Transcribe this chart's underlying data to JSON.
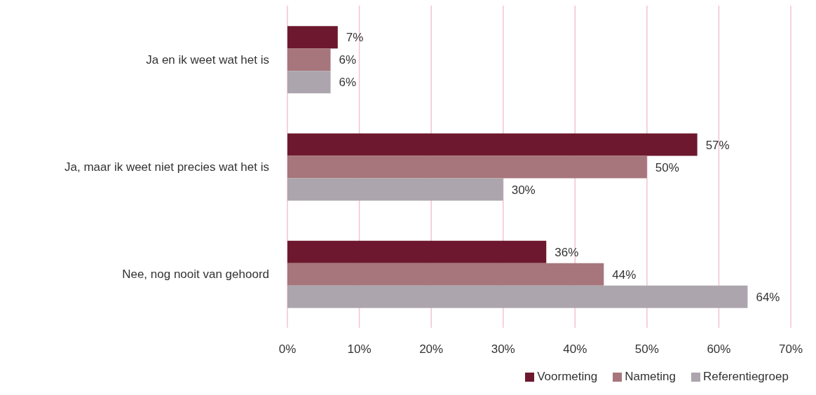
{
  "chart_data": {
    "type": "bar",
    "orientation": "horizontal",
    "categories": [
      "Ja en ik weet wat het is",
      "Ja, maar ik weet niet precies wat het is",
      "Nee, nog nooit van gehoord"
    ],
    "series": [
      {
        "name": "Voormeting",
        "color": "#6d182e",
        "values": [
          7,
          57,
          36
        ],
        "value_labels": [
          "7%",
          "57%",
          "36%"
        ]
      },
      {
        "name": "Nameting",
        "color": "#a6767c",
        "values": [
          6,
          50,
          44
        ],
        "value_labels": [
          "6%",
          "50%",
          "44%"
        ]
      },
      {
        "name": "Referentiegroep",
        "color": "#aca5ad",
        "values": [
          6,
          30,
          64
        ],
        "value_labels": [
          "6%",
          "30%",
          "64%"
        ]
      }
    ],
    "xlim": [
      0,
      70
    ],
    "xticks": [
      {
        "value": 0,
        "label": "0%"
      },
      {
        "value": 10,
        "label": "10%"
      },
      {
        "value": 20,
        "label": "20%"
      },
      {
        "value": 30,
        "label": "30%"
      },
      {
        "value": 40,
        "label": "40%"
      },
      {
        "value": 50,
        "label": "50%"
      },
      {
        "value": 60,
        "label": "60%"
      },
      {
        "value": 70,
        "label": "70%"
      }
    ],
    "grid": "x",
    "legend": "bottom"
  }
}
